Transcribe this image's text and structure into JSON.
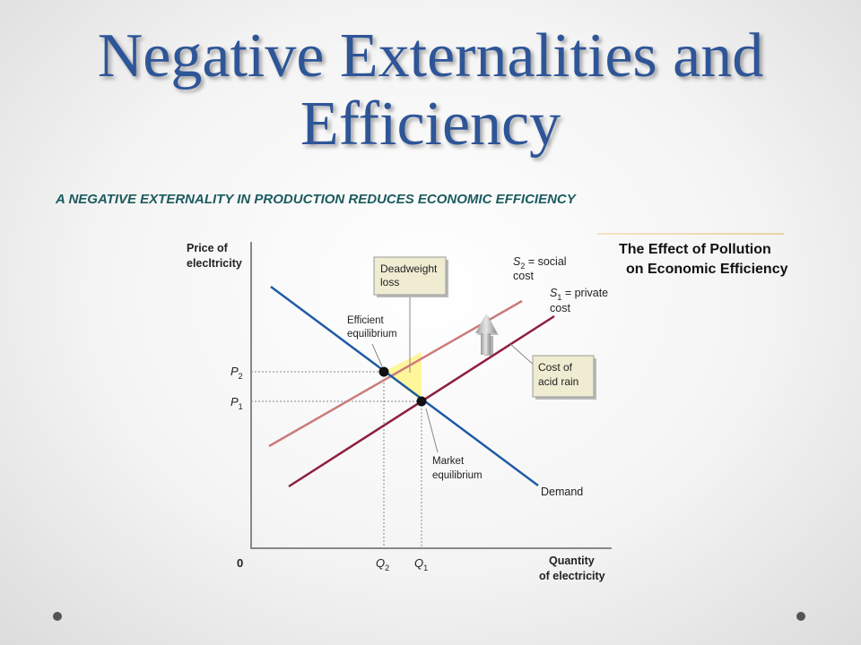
{
  "title": {
    "line1": "Negative Externalities and",
    "line2": "Efficiency"
  },
  "subtitle": "A NEGATIVE EXTERNALITY IN PRODUCTION REDUCES ECONOMIC EFFICIENCY",
  "side_title": {
    "line1": "The Effect of Pollution",
    "line2": "on Economic Efficiency"
  },
  "diagram": {
    "y_axis_label": [
      "Price of",
      "elecltricity"
    ],
    "x_axis_label": [
      "Quantity",
      "of electricity"
    ],
    "origin": "0",
    "p2": {
      "base": "P",
      "sub": "2"
    },
    "p1": {
      "base": "P",
      "sub": "1"
    },
    "q2": {
      "base": "Q",
      "sub": "2"
    },
    "q1": {
      "base": "Q",
      "sub": "1"
    },
    "s2_label": {
      "base": "S",
      "sub": "2",
      "rest": " = social",
      "line2": "cost"
    },
    "s1_label": {
      "base": "S",
      "sub": "1",
      "rest": " = private",
      "line2": "cost"
    },
    "demand": "Demand",
    "deadweight": [
      "Deadweight",
      "loss"
    ],
    "efficient": [
      "Efficient",
      "equilibrium"
    ],
    "market": [
      "Market",
      "equilibrium"
    ],
    "cost_acid": [
      "Cost of",
      "acid rain"
    ],
    "colors": {
      "demand": "#1f5aa6",
      "s1": "#8e1e3c",
      "s2": "#cc7b7b",
      "deadweight_fill": "#fff59a",
      "box_fill": "#efecd2"
    }
  }
}
